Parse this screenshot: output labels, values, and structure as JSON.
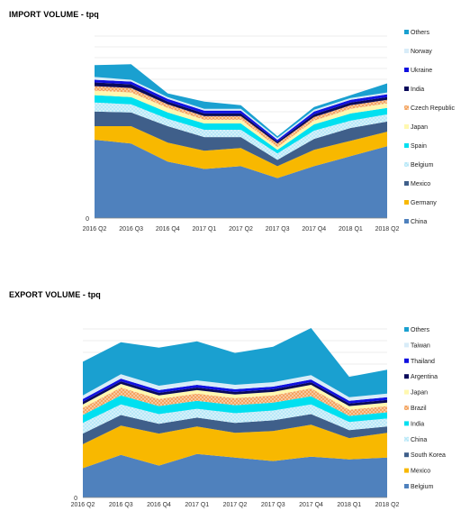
{
  "chart_data": [
    {
      "type": "area",
      "stacked": true,
      "title": "IMPORT VOLUME - tpq",
      "categories": [
        "2016 Q2",
        "2016 Q3",
        "2016 Q4",
        "2017 Q1",
        "2017 Q2",
        "2017 Q3",
        "2017 Q4",
        "2018 Q1",
        "2018 Q2"
      ],
      "y_tick_labels": [
        "0"
      ],
      "legend_position": "right",
      "series": [
        {
          "name": "China",
          "color": "#4f81bd",
          "values": [
            86,
            82,
            62,
            54,
            57,
            44,
            57,
            68,
            79
          ]
        },
        {
          "name": "Germany",
          "color": "#f8b800",
          "values": [
            15,
            19,
            21,
            20,
            20,
            13,
            18,
            17,
            16
          ]
        },
        {
          "name": "Mexico",
          "color": "#3f5f8a",
          "values": [
            16,
            15,
            18,
            15,
            12,
            7,
            12,
            14,
            11
          ]
        },
        {
          "name": "Belgium",
          "color": "#b8e8f8",
          "pattern": "dots",
          "values": [
            10,
            9,
            8,
            8,
            8,
            7,
            9,
            8,
            8
          ]
        },
        {
          "name": "Spain",
          "color": "#00e0f0",
          "values": [
            8,
            8,
            7,
            7,
            7,
            4,
            7,
            8,
            7
          ]
        },
        {
          "name": "Japan",
          "color": "#fff8b0",
          "values": [
            5,
            5,
            5,
            4,
            4,
            3,
            4,
            5,
            5
          ]
        },
        {
          "name": "Czech Republic",
          "color": "#f4a460",
          "pattern": "dots",
          "values": [
            5,
            5,
            4,
            4,
            4,
            4,
            4,
            4,
            4
          ]
        },
        {
          "name": "India",
          "color": "#0a0a5a",
          "values": [
            4,
            4,
            3,
            3,
            3,
            2,
            3,
            3,
            3
          ]
        },
        {
          "name": "Ukraine",
          "color": "#1010e0",
          "values": [
            3,
            3,
            3,
            3,
            3,
            2,
            3,
            3,
            3
          ]
        },
        {
          "name": "Norway",
          "color": "#d8ecf8",
          "values": [
            3,
            2,
            2,
            2,
            2,
            2,
            2,
            2,
            2
          ]
        },
        {
          "name": "Others",
          "color": "#1aa0d0",
          "values": [
            13,
            17,
            4,
            8,
            4,
            2,
            3,
            3,
            10
          ]
        }
      ]
    },
    {
      "type": "area",
      "stacked": true,
      "title": "EXPORT VOLUME - tpq",
      "categories": [
        "2016 Q2",
        "2016 Q3",
        "2016 Q4",
        "2017 Q1",
        "2017 Q2",
        "2017 Q3",
        "2017 Q4",
        "2018 Q1",
        "2018 Q2"
      ],
      "y_tick_labels": [
        "0"
      ],
      "legend_position": "right",
      "series": [
        {
          "name": "Belgium",
          "color": "#4f81bd",
          "values": [
            33,
            48,
            36,
            49,
            45,
            41,
            46,
            43,
            45
          ]
        },
        {
          "name": "Mexico",
          "color": "#f8b800",
          "values": [
            27,
            33,
            36,
            31,
            28,
            34,
            36,
            24,
            28
          ]
        },
        {
          "name": "South Korea",
          "color": "#3f5f8a",
          "values": [
            12,
            12,
            11,
            10,
            11,
            12,
            12,
            9,
            7
          ]
        },
        {
          "name": "China",
          "color": "#b8e8f8",
          "pattern": "dots",
          "values": [
            12,
            12,
            11,
            10,
            11,
            11,
            11,
            9,
            9
          ]
        },
        {
          "name": "India",
          "color": "#00e0f0",
          "values": [
            9,
            10,
            9,
            9,
            9,
            9,
            9,
            7,
            7
          ]
        },
        {
          "name": "Brazil",
          "color": "#f4a460",
          "pattern": "dots",
          "values": [
            8,
            9,
            8,
            8,
            8,
            8,
            9,
            7,
            7
          ]
        },
        {
          "name": "Japan",
          "color": "#fff8b0",
          "values": [
            4,
            4,
            4,
            4,
            4,
            4,
            4,
            4,
            4
          ]
        },
        {
          "name": "Argentina",
          "color": "#0a0a5a",
          "values": [
            3,
            3,
            3,
            3,
            3,
            3,
            3,
            3,
            3
          ]
        },
        {
          "name": "Thailand",
          "color": "#1010e0",
          "values": [
            3,
            3,
            3,
            3,
            3,
            3,
            3,
            3,
            3
          ]
        },
        {
          "name": "Taiwan",
          "color": "#d8ecf8",
          "values": [
            4,
            5,
            5,
            5,
            5,
            5,
            5,
            4,
            4
          ]
        },
        {
          "name": "Others",
          "color": "#1aa0d0",
          "values": [
            38,
            36,
            43,
            44,
            36,
            40,
            53,
            23,
            27
          ]
        }
      ]
    }
  ]
}
